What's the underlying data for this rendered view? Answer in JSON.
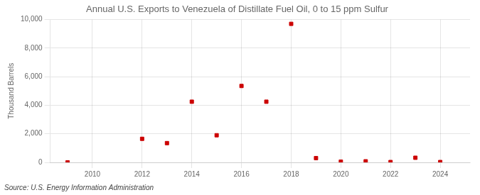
{
  "chart_data": {
    "type": "scatter",
    "title": "Annual U.S. Exports to Venezuela of Distillate Fuel Oil, 0 to 15 ppm Sulfur",
    "ylabel": "Thousand Barrels",
    "source": "Source: U.S. Energy Information Administration",
    "x": [
      2009,
      2012,
      2013,
      2014,
      2015,
      2016,
      2017,
      2018,
      2019,
      2020,
      2021,
      2022,
      2023,
      2024
    ],
    "values": [
      0,
      1650,
      1350,
      4250,
      1900,
      5350,
      4250,
      9700,
      300,
      50,
      75,
      25,
      325,
      25
    ],
    "color": "#cc0000",
    "marker": "square",
    "xlim": [
      2008.3,
      2025.2
    ],
    "xticks": [
      2010,
      2012,
      2014,
      2016,
      2018,
      2020,
      2022,
      2024
    ],
    "ylim": [
      0,
      10000
    ],
    "yticks": [
      0,
      {
        "value": 2000,
        "label": "2,000"
      },
      {
        "value": 4000,
        "label": "4,000"
      },
      {
        "value": 6000,
        "label": "6,000"
      },
      {
        "value": 8000,
        "label": "8,000"
      },
      {
        "value": 10000,
        "label": "10,000"
      }
    ],
    "grid": true
  }
}
